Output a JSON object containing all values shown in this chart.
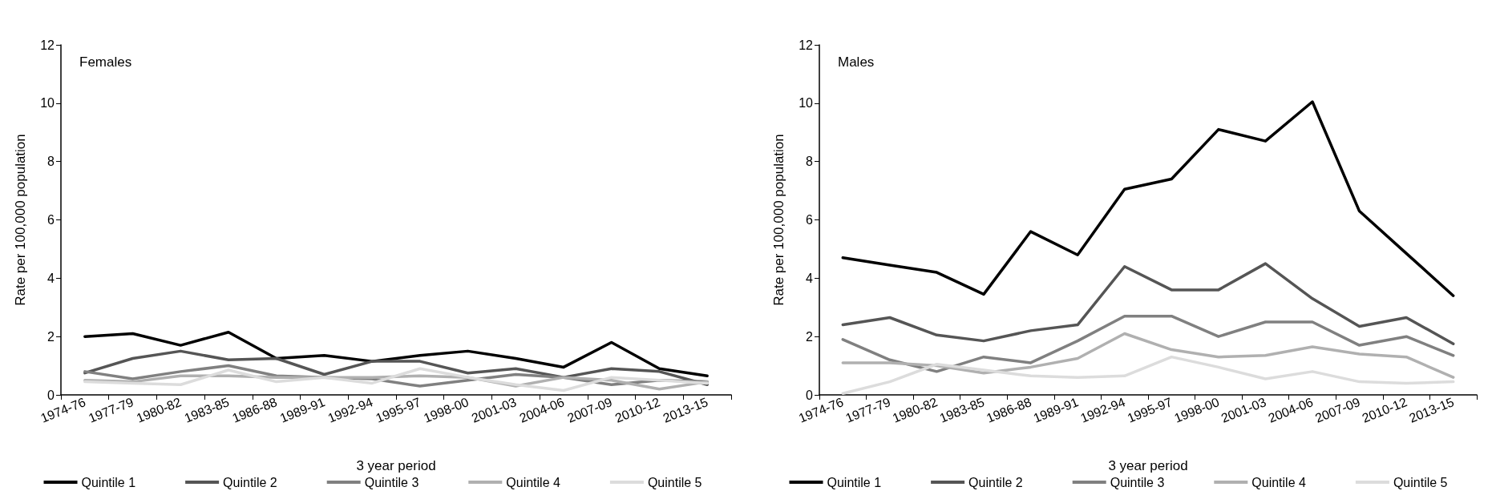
{
  "chart_data": [
    {
      "type": "line",
      "title": "Females",
      "xlabel": "3 year period",
      "ylabel": "Rate per 100,000 population",
      "categories": [
        "1974-76",
        "1977-79",
        "1980-82",
        "1983-85",
        "1986-88",
        "1989-91",
        "1992-94",
        "1995-97",
        "1998-00",
        "2001-03",
        "2004-06",
        "2007-09",
        "2010-12",
        "2013-15"
      ],
      "ylim": [
        0,
        12
      ],
      "yticks": [
        0,
        2,
        4,
        6,
        8,
        10,
        12
      ],
      "grid": false,
      "legend": "bottom",
      "marker": "none",
      "line_style": "solid",
      "series": [
        {
          "name": "Quintile 1",
          "color": "#000000",
          "values": [
            2.0,
            2.1,
            1.7,
            2.15,
            1.25,
            1.35,
            1.15,
            1.35,
            1.5,
            1.25,
            0.95,
            1.8,
            0.9,
            0.65
          ]
        },
        {
          "name": "Quintile 2",
          "color": "#555555",
          "values": [
            0.75,
            1.25,
            1.5,
            1.2,
            1.25,
            0.7,
            1.15,
            1.15,
            0.75,
            0.9,
            0.6,
            0.9,
            0.8,
            0.35
          ]
        },
        {
          "name": "Quintile 3",
          "color": "#808080",
          "values": [
            0.8,
            0.55,
            0.8,
            1.0,
            0.65,
            0.6,
            0.55,
            0.3,
            0.5,
            0.7,
            0.6,
            0.35,
            0.5,
            0.45
          ]
        },
        {
          "name": "Quintile 4",
          "color": "#b0b0b0",
          "values": [
            0.5,
            0.45,
            0.65,
            0.65,
            0.6,
            0.6,
            0.6,
            0.65,
            0.6,
            0.3,
            0.6,
            0.5,
            0.2,
            0.45
          ]
        },
        {
          "name": "Quintile 5",
          "color": "#dcdcdc",
          "values": [
            0.45,
            0.4,
            0.35,
            0.85,
            0.45,
            0.6,
            0.4,
            0.9,
            0.6,
            0.35,
            0.15,
            0.6,
            0.5,
            0.4
          ]
        }
      ]
    },
    {
      "type": "line",
      "title": "Males",
      "xlabel": "3 year period",
      "ylabel": "Rate per 100,000 population",
      "categories": [
        "1974-76",
        "1977-79",
        "1980-82",
        "1983-85",
        "1986-88",
        "1989-91",
        "1992-94",
        "1995-97",
        "1998-00",
        "2001-03",
        "2004-06",
        "2007-09",
        "2010-12",
        "2013-15"
      ],
      "ylim": [
        0,
        12
      ],
      "yticks": [
        0,
        2,
        4,
        6,
        8,
        10,
        12
      ],
      "grid": false,
      "legend": "bottom",
      "marker": "none",
      "line_style": "solid",
      "series": [
        {
          "name": "Quintile 1",
          "color": "#000000",
          "values": [
            4.7,
            4.45,
            4.2,
            3.45,
            5.6,
            4.8,
            7.05,
            7.4,
            9.1,
            8.7,
            10.05,
            6.3,
            4.85,
            3.4
          ]
        },
        {
          "name": "Quintile 2",
          "color": "#555555",
          "values": [
            2.4,
            2.65,
            2.05,
            1.85,
            2.2,
            2.4,
            4.4,
            3.6,
            3.6,
            4.5,
            3.3,
            2.35,
            2.65,
            1.75
          ]
        },
        {
          "name": "Quintile 3",
          "color": "#808080",
          "values": [
            1.9,
            1.2,
            0.8,
            1.3,
            1.1,
            1.85,
            2.7,
            2.7,
            2.0,
            2.5,
            2.5,
            1.7,
            2.0,
            1.35
          ]
        },
        {
          "name": "Quintile 4",
          "color": "#b0b0b0",
          "values": [
            1.1,
            1.1,
            1.0,
            0.75,
            0.95,
            1.25,
            2.1,
            1.55,
            1.3,
            1.35,
            1.65,
            1.4,
            1.3,
            0.6
          ]
        },
        {
          "name": "Quintile 5",
          "color": "#dcdcdc",
          "values": [
            0.05,
            0.45,
            1.05,
            0.85,
            0.65,
            0.6,
            0.65,
            1.3,
            0.95,
            0.55,
            0.8,
            0.45,
            0.4,
            0.45
          ]
        }
      ]
    }
  ]
}
